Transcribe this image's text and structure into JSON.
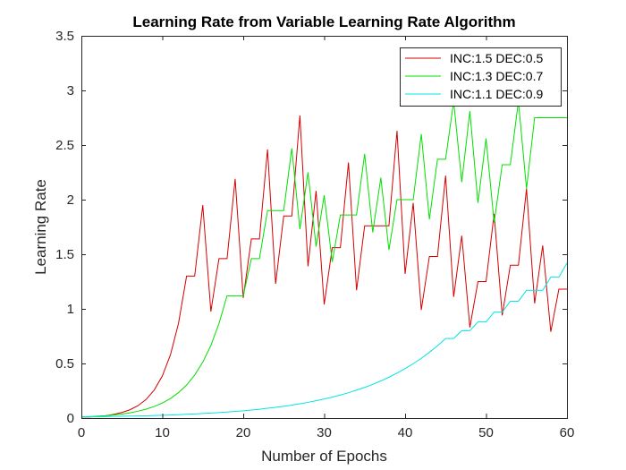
{
  "chart_data": {
    "type": "line",
    "title": "Learning Rate from Variable Learning Rate Algorithm",
    "xlabel": "Number of Epochs",
    "ylabel": "Learning Rate",
    "xlim": [
      0,
      60
    ],
    "ylim": [
      0,
      3.5
    ],
    "xticks": [
      0,
      10,
      20,
      30,
      40,
      50,
      60
    ],
    "yticks": [
      0,
      0.5,
      1,
      1.5,
      2,
      2.5,
      3,
      3.5
    ],
    "xtick_labels": [
      "0",
      "10",
      "20",
      "30",
      "40",
      "50",
      "60"
    ],
    "ytick_labels": [
      "0",
      "0.5",
      "1",
      "1.5",
      "2",
      "2.5",
      "3",
      "3.5"
    ],
    "grid": false,
    "legend_position": "top-right",
    "series": [
      {
        "name": "INC:1.5 DEC:0.5",
        "color": "#d40000",
        "x": [
          0,
          1,
          2,
          3,
          4,
          5,
          6,
          7,
          8,
          9,
          10,
          11,
          12,
          13,
          14,
          15,
          16,
          17,
          18,
          19,
          20,
          21,
          22,
          23,
          24,
          25,
          26,
          27,
          28,
          29,
          30,
          31,
          32,
          33,
          34,
          35,
          36,
          37,
          38,
          39,
          40,
          41,
          42,
          43,
          44,
          45,
          46,
          47,
          48,
          49,
          50,
          51,
          52,
          53,
          54,
          55,
          56,
          57,
          58,
          59,
          60
        ],
        "y": [
          0.01,
          0.01,
          0.015,
          0.022,
          0.034,
          0.051,
          0.076,
          0.114,
          0.171,
          0.257,
          0.385,
          0.578,
          0.867,
          1.3,
          1.3,
          1.95,
          0.975,
          1.46,
          1.46,
          2.19,
          1.1,
          1.64,
          1.64,
          2.46,
          1.23,
          1.85,
          1.85,
          2.77,
          1.39,
          2.08,
          1.04,
          1.56,
          1.56,
          2.34,
          1.17,
          1.76,
          1.76,
          1.76,
          1.76,
          2.63,
          1.32,
          1.97,
          0.99,
          1.48,
          1.48,
          2.22,
          1.11,
          1.67,
          0.83,
          1.25,
          1.25,
          1.87,
          0.94,
          1.4,
          1.4,
          2.1,
          1.05,
          1.58,
          0.79,
          1.18,
          1.18
        ]
      },
      {
        "name": "INC:1.3 DEC:0.7",
        "color": "#00e000",
        "x": [
          0,
          1,
          2,
          3,
          4,
          5,
          6,
          7,
          8,
          9,
          10,
          11,
          12,
          13,
          14,
          15,
          16,
          17,
          18,
          19,
          20,
          21,
          22,
          23,
          24,
          25,
          26,
          27,
          28,
          29,
          30,
          31,
          32,
          33,
          34,
          35,
          36,
          37,
          38,
          39,
          40,
          41,
          42,
          43,
          44,
          45,
          46,
          47,
          48,
          49,
          50,
          51,
          52,
          53,
          54,
          55,
          56,
          57,
          58,
          59,
          60
        ],
        "y": [
          0.01,
          0.013,
          0.017,
          0.022,
          0.029,
          0.037,
          0.048,
          0.063,
          0.082,
          0.106,
          0.138,
          0.179,
          0.233,
          0.303,
          0.394,
          0.512,
          0.665,
          0.865,
          1.12,
          1.12,
          1.12,
          1.46,
          1.46,
          1.9,
          1.9,
          1.9,
          2.47,
          1.73,
          2.25,
          1.57,
          2.04,
          1.43,
          1.86,
          1.86,
          1.86,
          2.42,
          1.7,
          2.2,
          1.54,
          2.0,
          2.0,
          2.0,
          2.6,
          1.82,
          2.37,
          2.37,
          2.9,
          2.16,
          2.81,
          1.97,
          2.56,
          1.79,
          2.32,
          2.32,
          2.9,
          2.1,
          2.75,
          2.75,
          2.75,
          2.75,
          2.75
        ]
      },
      {
        "name": "INC:1.1 DEC:0.9",
        "color": "#00e5e5",
        "x": [
          0,
          1,
          2,
          3,
          4,
          5,
          6,
          7,
          8,
          9,
          10,
          11,
          12,
          13,
          14,
          15,
          16,
          17,
          18,
          19,
          20,
          21,
          22,
          23,
          24,
          25,
          26,
          27,
          28,
          29,
          30,
          31,
          32,
          33,
          34,
          35,
          36,
          37,
          38,
          39,
          40,
          41,
          42,
          43,
          44,
          45,
          46,
          47,
          48,
          49,
          50,
          51,
          52,
          53,
          54,
          55,
          56,
          57,
          58,
          59,
          60
        ],
        "y": [
          0.01,
          0.011,
          0.012,
          0.013,
          0.015,
          0.016,
          0.018,
          0.019,
          0.021,
          0.024,
          0.026,
          0.028,
          0.031,
          0.035,
          0.038,
          0.042,
          0.046,
          0.05,
          0.055,
          0.061,
          0.067,
          0.074,
          0.081,
          0.09,
          0.098,
          0.108,
          0.119,
          0.131,
          0.144,
          0.159,
          0.175,
          0.192,
          0.211,
          0.232,
          0.256,
          0.281,
          0.309,
          0.34,
          0.374,
          0.411,
          0.453,
          0.498,
          0.547,
          0.602,
          0.662,
          0.728,
          0.728,
          0.8,
          0.8,
          0.88,
          0.88,
          0.97,
          0.97,
          1.07,
          1.07,
          1.17,
          1.17,
          1.17,
          1.29,
          1.29,
          1.42
        ]
      }
    ]
  }
}
